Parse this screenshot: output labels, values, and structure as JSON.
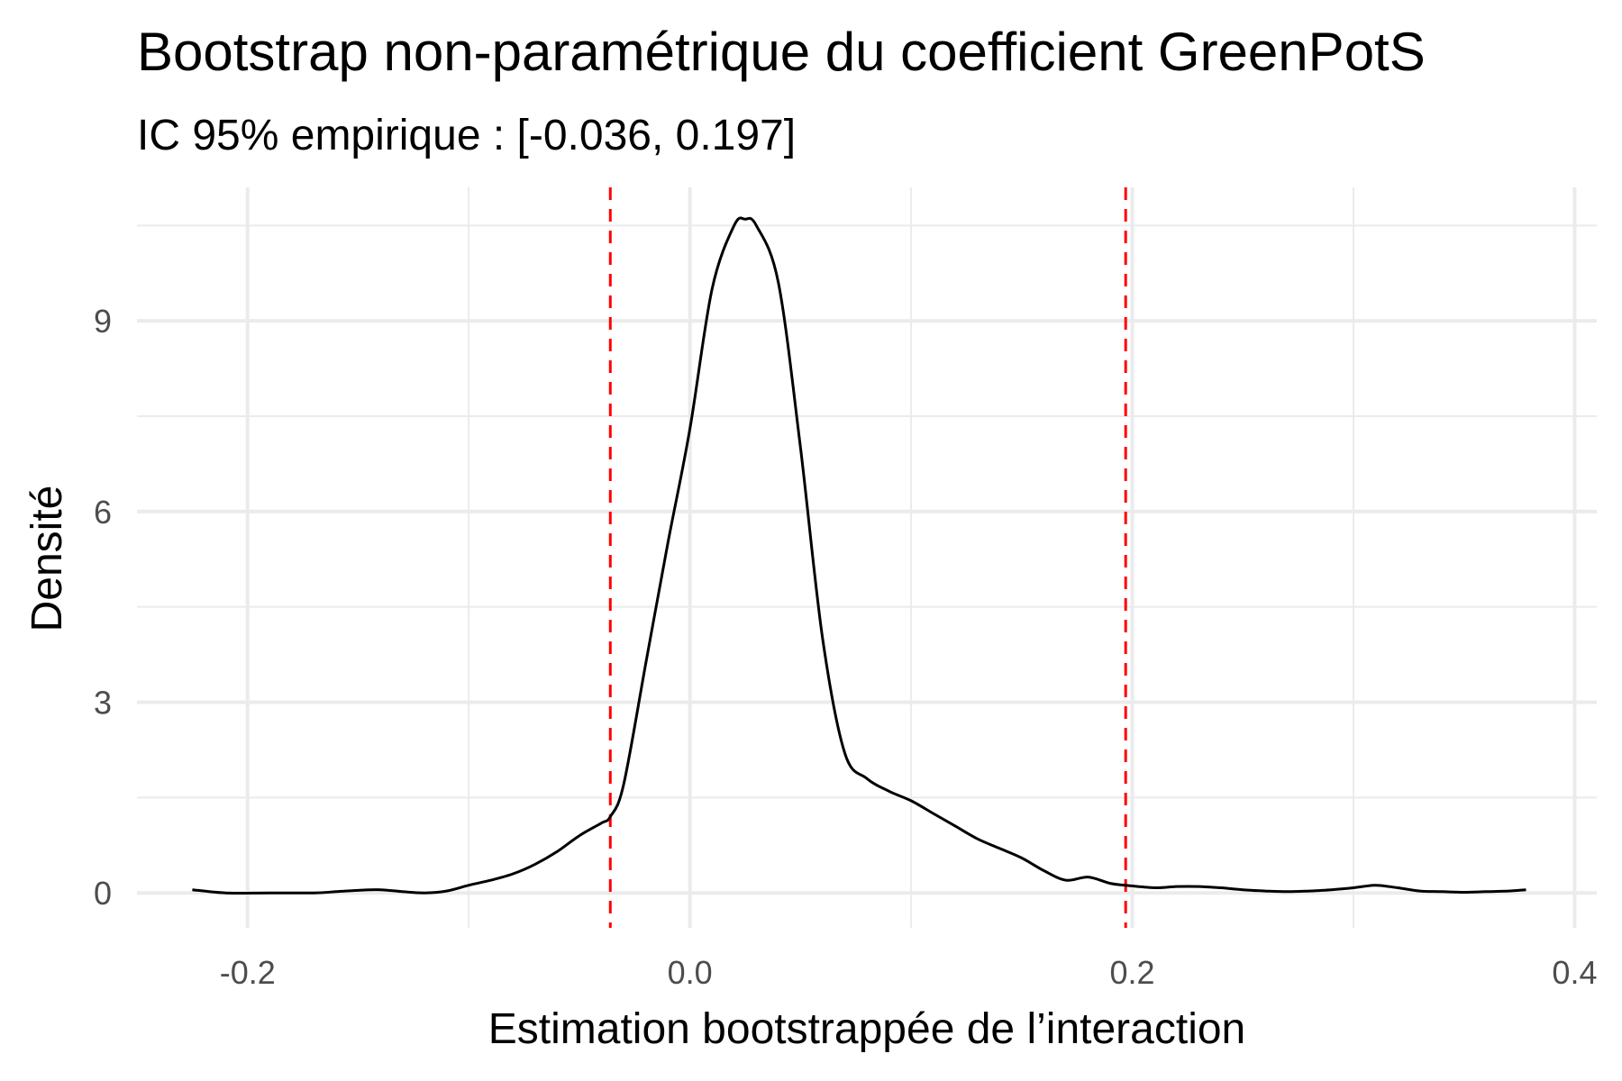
{
  "chart_data": {
    "type": "line",
    "title": "Bootstrap non-paramétrique du coefficient GreenPotS",
    "subtitle": "IC 95% empirique : [-0.036, 0.197]",
    "xlabel": "Estimation bootstrappée de l’interaction",
    "ylabel": "Densité",
    "xlim": [
      -0.25,
      0.41
    ],
    "ylim": [
      -0.55,
      11.1
    ],
    "x_ticks": [
      -0.2,
      0.0,
      0.2,
      0.4
    ],
    "x_tick_labels": [
      "-0.2",
      "0.0",
      "0.2",
      "0.4"
    ],
    "y_ticks": [
      0,
      3,
      6,
      9
    ],
    "y_tick_labels": [
      "0",
      "3",
      "6",
      "9"
    ],
    "grid": true,
    "series": [
      {
        "x": [
          -0.225,
          -0.21,
          -0.19,
          -0.17,
          -0.16,
          -0.15,
          -0.14,
          -0.13,
          -0.12,
          -0.11,
          -0.1,
          -0.09,
          -0.08,
          -0.07,
          -0.06,
          -0.05,
          -0.04,
          -0.036,
          -0.03,
          -0.02,
          -0.01,
          0.0,
          0.01,
          0.02,
          0.025,
          0.03,
          0.04,
          0.05,
          0.06,
          0.07,
          0.08,
          0.09,
          0.1,
          0.11,
          0.12,
          0.13,
          0.14,
          0.15,
          0.16,
          0.17,
          0.18,
          0.19,
          0.197,
          0.21,
          0.22,
          0.23,
          0.24,
          0.25,
          0.26,
          0.27,
          0.28,
          0.29,
          0.3,
          0.31,
          0.32,
          0.33,
          0.34,
          0.35,
          0.36,
          0.37,
          0.378
        ],
        "y": [
          0.05,
          0.0,
          0.0,
          0.0,
          0.02,
          0.04,
          0.05,
          0.02,
          0.0,
          0.03,
          0.12,
          0.2,
          0.3,
          0.45,
          0.65,
          0.9,
          1.1,
          1.2,
          1.7,
          3.6,
          5.5,
          7.3,
          9.5,
          10.5,
          10.6,
          10.5,
          9.6,
          7.0,
          4.0,
          2.2,
          1.8,
          1.6,
          1.45,
          1.25,
          1.05,
          0.85,
          0.7,
          0.55,
          0.35,
          0.2,
          0.25,
          0.15,
          0.12,
          0.08,
          0.1,
          0.1,
          0.08,
          0.05,
          0.03,
          0.02,
          0.03,
          0.05,
          0.08,
          0.12,
          0.08,
          0.03,
          0.02,
          0.01,
          0.02,
          0.03,
          0.05
        ]
      }
    ],
    "reference_lines": [
      {
        "x": -0.036,
        "color": "#ff0000",
        "style": "dashed"
      },
      {
        "x": 0.197,
        "color": "#ff0000",
        "style": "dashed"
      }
    ]
  }
}
